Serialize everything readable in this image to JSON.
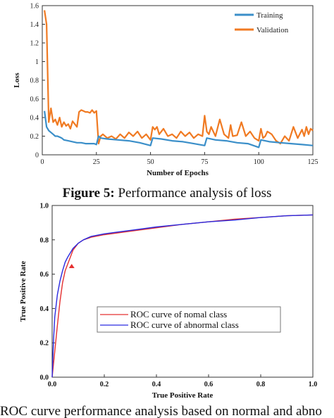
{
  "colors": {
    "training": "#3b8fc9",
    "validation": "#f07a22",
    "roc_normal": "#e53030",
    "roc_abnormal": "#2a2ae0"
  },
  "captions": {
    "fig5_label": "Figure 5:",
    "fig5_text": " Performance analysis of loss",
    "fig6_text": "ROC curve performance analysis based on normal and abno"
  },
  "chart_data": [
    {
      "type": "line",
      "title": "",
      "xlabel": "Number of Epochs",
      "ylabel": "Loss",
      "xlim": [
        0,
        125
      ],
      "ylim": [
        0,
        1.6
      ],
      "xticks": [
        "0",
        "25",
        "50",
        "75",
        "100",
        "125"
      ],
      "yticks": [
        "0",
        "0.2",
        "0.4",
        "0.6",
        "0.8",
        "1",
        "1.2",
        "1.4",
        "1.6"
      ],
      "grid": false,
      "legend": "top-right",
      "series": [
        {
          "name": "Training",
          "x": [
            1,
            2,
            3,
            4,
            5,
            6,
            7,
            8,
            9,
            10,
            12,
            14,
            16,
            18,
            20,
            22,
            24,
            25,
            26,
            27,
            30,
            35,
            40,
            45,
            50,
            51,
            55,
            60,
            65,
            70,
            75,
            76,
            80,
            85,
            90,
            95,
            100,
            101,
            105,
            110,
            115,
            120,
            125
          ],
          "y": [
            0.47,
            0.3,
            0.26,
            0.24,
            0.22,
            0.2,
            0.2,
            0.19,
            0.18,
            0.16,
            0.15,
            0.14,
            0.13,
            0.13,
            0.12,
            0.12,
            0.12,
            0.11,
            0.2,
            0.18,
            0.17,
            0.16,
            0.15,
            0.13,
            0.1,
            0.18,
            0.17,
            0.15,
            0.14,
            0.12,
            0.1,
            0.18,
            0.16,
            0.15,
            0.13,
            0.12,
            0.08,
            0.16,
            0.14,
            0.13,
            0.12,
            0.11,
            0.1
          ]
        },
        {
          "name": "Validation",
          "x": [
            1,
            2,
            3,
            4,
            5,
            6,
            7,
            8,
            9,
            10,
            11,
            12,
            13,
            14,
            15,
            16,
            17,
            18,
            19,
            20,
            21,
            22,
            23,
            24,
            25,
            26,
            27,
            28,
            30,
            32,
            34,
            36,
            38,
            40,
            42,
            44,
            46,
            48,
            50,
            51,
            52,
            53,
            54,
            56,
            58,
            60,
            62,
            64,
            66,
            68,
            70,
            72,
            74,
            75,
            76,
            77,
            78,
            80,
            82,
            84,
            86,
            87,
            88,
            90,
            92,
            94,
            96,
            98,
            100,
            101,
            102,
            103,
            104,
            106,
            108,
            110,
            112,
            114,
            116,
            118,
            120,
            121,
            122,
            123,
            124,
            125
          ],
          "y": [
            1.55,
            1.4,
            0.35,
            0.5,
            0.35,
            0.38,
            0.32,
            0.4,
            0.3,
            0.35,
            0.31,
            0.33,
            0.28,
            0.36,
            0.33,
            0.3,
            0.46,
            0.48,
            0.47,
            0.46,
            0.46,
            0.45,
            0.48,
            0.45,
            0.47,
            0.12,
            0.2,
            0.22,
            0.18,
            0.2,
            0.17,
            0.22,
            0.18,
            0.24,
            0.2,
            0.25,
            0.18,
            0.22,
            0.16,
            0.3,
            0.27,
            0.3,
            0.22,
            0.28,
            0.2,
            0.22,
            0.18,
            0.25,
            0.2,
            0.24,
            0.18,
            0.22,
            0.2,
            0.42,
            0.25,
            0.22,
            0.3,
            0.2,
            0.38,
            0.22,
            0.18,
            0.32,
            0.2,
            0.21,
            0.35,
            0.2,
            0.25,
            0.18,
            0.15,
            0.28,
            0.18,
            0.2,
            0.25,
            0.22,
            0.15,
            0.12,
            0.2,
            0.15,
            0.3,
            0.18,
            0.27,
            0.2,
            0.3,
            0.22,
            0.28,
            0.26
          ]
        }
      ]
    },
    {
      "type": "line",
      "title": "",
      "xlabel": "True Positive Rate",
      "ylabel": "True Positive Rate",
      "xlim": [
        0,
        1
      ],
      "ylim": [
        0,
        1
      ],
      "xticks": [
        "0.0",
        "0.2",
        "0.4",
        "0.6",
        "0.8",
        "1.0"
      ],
      "yticks": [
        "0.0",
        "0.2",
        "0.4",
        "0.6",
        "0.8",
        "1.0"
      ],
      "grid": false,
      "legend": "center",
      "series": [
        {
          "name": "ROC curve of nomal class",
          "x": [
            0,
            0.01,
            0.02,
            0.03,
            0.04,
            0.05,
            0.06,
            0.07,
            0.08,
            0.09,
            0.1,
            0.12,
            0.15,
            0.2,
            0.25,
            0.3,
            0.4,
            0.5,
            0.6,
            0.7,
            0.8,
            0.9,
            1.0
          ],
          "y": [
            0,
            0.15,
            0.3,
            0.44,
            0.55,
            0.62,
            0.66,
            0.7,
            0.74,
            0.76,
            0.78,
            0.8,
            0.815,
            0.83,
            0.84,
            0.85,
            0.87,
            0.89,
            0.905,
            0.92,
            0.93,
            0.94,
            0.945
          ]
        },
        {
          "name": "ROC curve of abnormal class",
          "x": [
            0,
            0.005,
            0.01,
            0.02,
            0.03,
            0.04,
            0.05,
            0.06,
            0.08,
            0.1,
            0.12,
            0.15,
            0.2,
            0.25,
            0.3,
            0.4,
            0.5,
            0.6,
            0.7,
            0.8,
            0.9,
            1.0
          ],
          "y": [
            0,
            0.2,
            0.35,
            0.48,
            0.56,
            0.62,
            0.67,
            0.7,
            0.75,
            0.78,
            0.8,
            0.82,
            0.835,
            0.845,
            0.855,
            0.875,
            0.89,
            0.905,
            0.915,
            0.93,
            0.94,
            0.945
          ]
        }
      ]
    }
  ]
}
